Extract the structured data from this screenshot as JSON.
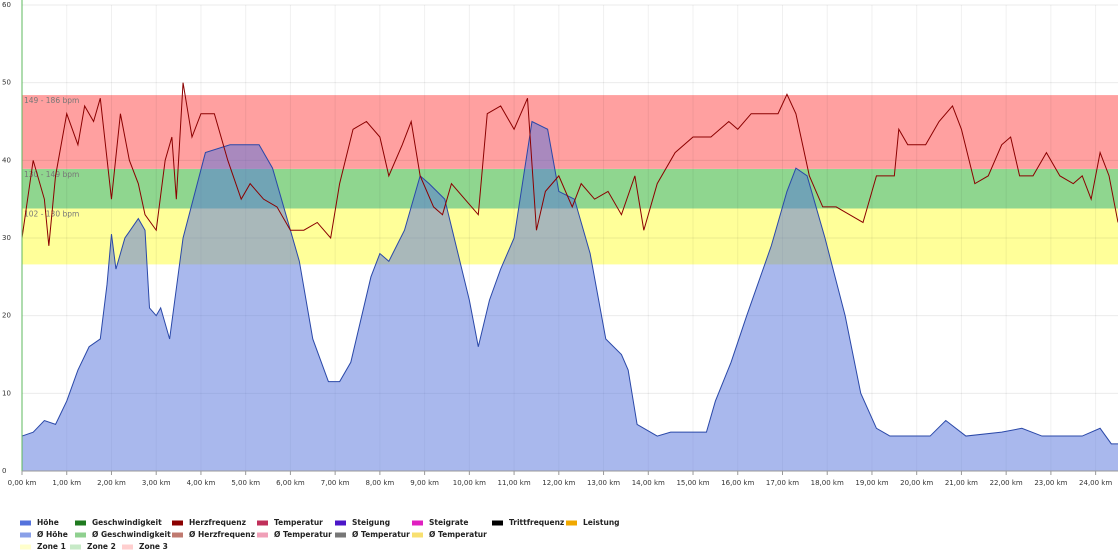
{
  "chart_data": {
    "type": "area-line",
    "xlim": [
      0,
      24.5
    ],
    "ylim": [
      0,
      60
    ],
    "yticks": [
      0,
      10,
      20,
      30,
      40,
      50,
      60
    ],
    "xticks": [
      {
        "value": 0,
        "label": "0,00 km"
      },
      {
        "value": 1,
        "label": "1,00 km"
      },
      {
        "value": 2,
        "label": "2,00 km"
      },
      {
        "value": 3,
        "label": "3,00 km"
      },
      {
        "value": 4,
        "label": "4,00 km"
      },
      {
        "value": 5,
        "label": "5,00 km"
      },
      {
        "value": 6,
        "label": "6,00 km"
      },
      {
        "value": 7,
        "label": "7,00 km"
      },
      {
        "value": 8,
        "label": "8,00 km"
      },
      {
        "value": 9,
        "label": "9,00 km"
      },
      {
        "value": 10,
        "label": "10,00 km"
      },
      {
        "value": 11,
        "label": "11,00 km"
      },
      {
        "value": 12,
        "label": "12,00 km"
      },
      {
        "value": 13,
        "label": "13,00 km"
      },
      {
        "value": 14,
        "label": "14,00 km"
      },
      {
        "value": 15,
        "label": "15,00 km"
      },
      {
        "value": 16,
        "label": "16,00 km"
      },
      {
        "value": 17,
        "label": "17,00 km"
      },
      {
        "value": 18,
        "label": "18,00 km"
      },
      {
        "value": 19,
        "label": "19,00 km"
      },
      {
        "value": 20,
        "label": "20,00 km"
      },
      {
        "value": 21,
        "label": "21,00 km"
      },
      {
        "value": 22,
        "label": "22,00 km"
      },
      {
        "value": 23,
        "label": "23,00 km"
      },
      {
        "value": 24,
        "label": "24,00 km"
      }
    ],
    "grid": true,
    "zones": [
      {
        "name": "Zone 1",
        "label": "102 - 130 bpm",
        "from": 26.6,
        "to": 33.8,
        "color": "#ffff99"
      },
      {
        "name": "Zone 2",
        "label": "130 - 149 bpm",
        "from": 33.8,
        "to": 38.9,
        "color": "#8fd68f"
      },
      {
        "name": "Zone 3",
        "label": "149 - 186 bpm",
        "from": 38.9,
        "to": 48.4,
        "color": "#ffa0a0"
      }
    ],
    "series": [
      {
        "name": "Höhe",
        "color": "#5472dc",
        "style": "area",
        "x": [
          0,
          0.25,
          0.5,
          0.75,
          1.0,
          1.25,
          1.5,
          1.75,
          1.9,
          2.0,
          2.1,
          2.3,
          2.6,
          2.75,
          2.85,
          3.0,
          3.1,
          3.3,
          3.6,
          4.1,
          4.65,
          5.3,
          5.6,
          6.2,
          6.5,
          6.85,
          7.1,
          7.35,
          7.8,
          8.0,
          8.2,
          8.55,
          8.9,
          9.1,
          9.45,
          10.0,
          10.2,
          10.45,
          10.7,
          11.0,
          11.4,
          11.75,
          12.0,
          12.35,
          12.7,
          13.05,
          13.4,
          13.55,
          13.75,
          14.2,
          14.5,
          15.3,
          15.5,
          15.85,
          16.2,
          16.75,
          17.1,
          17.3,
          17.55,
          17.95,
          18.4,
          18.75,
          19.1,
          19.4,
          20.3,
          20.65,
          21.1,
          21.9,
          22.35,
          22.8,
          23.7,
          24.1,
          24.35,
          24.5
        ],
        "values": [
          4.5,
          5,
          6.5,
          6,
          9,
          13,
          16,
          17,
          24,
          30.5,
          26,
          30,
          32.5,
          31,
          21,
          20,
          21,
          17,
          30,
          41,
          42,
          42,
          39,
          27,
          17,
          11.5,
          11.5,
          14,
          25,
          28,
          27,
          31,
          38,
          37,
          35,
          22,
          16,
          22,
          26,
          30,
          45,
          44,
          36,
          35,
          28,
          17,
          15,
          13,
          6,
          4.5,
          5,
          5,
          9,
          14,
          20,
          29,
          36,
          39,
          38,
          30,
          20,
          10,
          5.5,
          4.5,
          4.5,
          6.5,
          4.5,
          5,
          5.5,
          4.5,
          4.5,
          5.5,
          3.5,
          3.5
        ]
      },
      {
        "name": "Geschwindigkeit",
        "color": "#1f7a1f"
      },
      {
        "name": "Herzfrequenz",
        "color": "#8b0000",
        "style": "line",
        "x": [
          0,
          0.25,
          0.5,
          0.6,
          0.75,
          1.0,
          1.25,
          1.4,
          1.6,
          1.75,
          2.0,
          2.2,
          2.4,
          2.6,
          2.75,
          3.0,
          3.2,
          3.35,
          3.45,
          3.6,
          3.8,
          4.0,
          4.3,
          4.6,
          4.9,
          5.1,
          5.4,
          5.7,
          6.0,
          6.3,
          6.6,
          6.9,
          7.1,
          7.4,
          7.7,
          8.0,
          8.2,
          8.5,
          8.7,
          8.9,
          9.2,
          9.4,
          9.6,
          9.9,
          10.2,
          10.4,
          10.7,
          11.0,
          11.3,
          11.5,
          11.7,
          12.0,
          12.3,
          12.5,
          12.8,
          13.1,
          13.4,
          13.7,
          13.9,
          14.2,
          14.6,
          15.0,
          15.4,
          15.8,
          16.0,
          16.3,
          16.6,
          16.9,
          17.1,
          17.3,
          17.6,
          17.9,
          18.2,
          18.5,
          18.8,
          19.1,
          19.5,
          19.6,
          19.8,
          20.2,
          20.5,
          20.8,
          21.0,
          21.3,
          21.6,
          21.9,
          22.1,
          22.3,
          22.6,
          22.9,
          23.2,
          23.5,
          23.7,
          23.9,
          24.1,
          24.3,
          24.5
        ],
        "values": [
          30,
          40,
          35,
          29,
          38,
          46,
          42,
          47,
          45,
          48,
          35,
          46,
          40,
          37,
          33,
          31,
          40,
          43,
          35,
          50,
          43,
          46,
          46,
          40,
          35,
          37,
          35,
          34,
          31,
          31,
          32,
          30,
          37,
          44,
          45,
          43,
          38,
          42,
          45,
          38,
          34,
          33,
          37,
          35,
          33,
          46,
          47,
          44,
          48,
          31,
          36,
          38,
          34,
          37,
          35,
          36,
          33,
          38,
          31,
          37,
          41,
          43,
          43,
          45,
          44,
          46,
          46,
          46,
          48.5,
          46,
          38,
          34,
          34,
          33,
          32,
          38,
          38,
          44,
          42,
          42,
          45,
          47,
          44,
          37,
          38,
          42,
          43,
          38,
          38,
          41,
          38,
          37,
          38,
          35,
          41,
          38,
          32
        ]
      },
      {
        "name": "Temperatur",
        "color": "#c0305a"
      },
      {
        "name": "Steigung",
        "color": "#4b16c8"
      },
      {
        "name": "Steigrate",
        "color": "#e020c0"
      },
      {
        "name": "Trittfrequenz",
        "color": "#000000"
      },
      {
        "name": "Leistung",
        "color": "#f0a800"
      },
      {
        "name": "Ø Höhe",
        "color": "#8aa0e8"
      },
      {
        "name": "Ø Geschwindigkeit",
        "color": "#8fd08f"
      },
      {
        "name": "Ø Herzfrequenz",
        "color": "#c07a70"
      },
      {
        "name": "Ø Temperatur",
        "color": "#f0a0b8"
      },
      {
        "name": "Ø Temperatur",
        "color": "#777777"
      },
      {
        "name": "Ø Temperatur",
        "color": "#f8e070"
      }
    ]
  }
}
